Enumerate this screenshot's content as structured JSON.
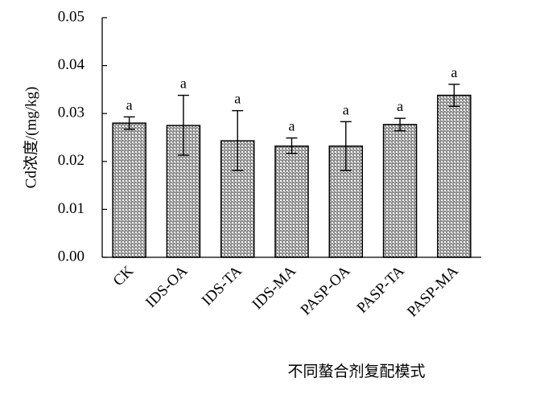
{
  "chart_data": {
    "type": "bar",
    "categories": [
      "CK",
      "IDS-OA",
      "IDS-TA",
      "IDS-MA",
      "PASP-OA",
      "PASP-TA",
      "PASP-MA"
    ],
    "values": [
      0.028,
      0.0275,
      0.0243,
      0.0232,
      0.0232,
      0.0277,
      0.0338
    ],
    "error_high": [
      0.0293,
      0.0338,
      0.0306,
      0.0249,
      0.0283,
      0.029,
      0.0361
    ],
    "error_low": [
      0.0267,
      0.0213,
      0.0181,
      0.0217,
      0.0181,
      0.0264,
      0.0315
    ],
    "significance_labels": [
      "a",
      "a",
      "a",
      "a",
      "a",
      "a",
      "a"
    ],
    "xlabel": "不同螯合剂复配模式",
    "ylabel": "Cd浓度/(mg/kg)",
    "ylim": [
      0,
      0.05
    ],
    "yticks": [
      "0.00",
      "0.01",
      "0.02",
      "0.03",
      "0.04",
      "0.05"
    ],
    "grid": false,
    "legend": "none",
    "bar_fill": "crosshatch-dots",
    "colors": {
      "axis": "#000000",
      "bar_edge": "#000000",
      "bar_pattern_bg": "#8a8a8a",
      "bar_pattern_fg": "#ffffff"
    }
  }
}
